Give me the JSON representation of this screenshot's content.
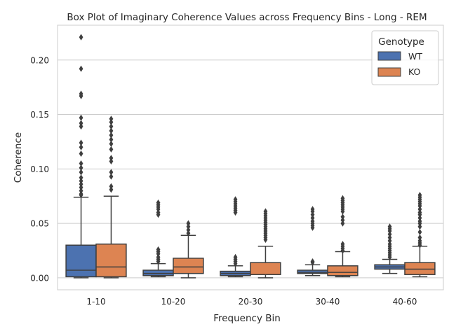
{
  "chart_data": {
    "type": "box",
    "title": "Box Plot of Imaginary Coherence Values across Frequency Bins - Long - REM",
    "xlabel": "Frequency Bin",
    "ylabel": "Coherence",
    "ylim": [
      -0.011,
      0.232
    ],
    "yticks": [
      0.0,
      0.05,
      0.1,
      0.15,
      0.2
    ],
    "ytick_labels": [
      "0.00",
      "0.05",
      "0.10",
      "0.15",
      "0.20"
    ],
    "grid": true,
    "legend": {
      "title": "Genotype",
      "placement": "top-right"
    },
    "categories": [
      "1-10",
      "10-20",
      "20-30",
      "30-40",
      "40-60"
    ],
    "series": [
      {
        "name": "WT",
        "color": "#4c72b0",
        "boxes": [
          {
            "whislo": 0.0,
            "q1": 0.001,
            "med": 0.007,
            "q3": 0.03,
            "whishi": 0.074,
            "fliers": [
              0.221,
              0.192,
              0.169,
              0.167,
              0.147,
              0.142,
              0.139,
              0.124,
              0.12,
              0.114,
              0.105,
              0.101,
              0.097,
              0.092,
              0.089,
              0.086,
              0.083,
              0.08,
              0.077,
              0.076
            ]
          },
          {
            "whislo": 0.001,
            "q1": 0.002,
            "med": 0.004,
            "q3": 0.007,
            "whishi": 0.013,
            "fliers": [
              0.069,
              0.067,
              0.065,
              0.063,
              0.06,
              0.058,
              0.026,
              0.024,
              0.022,
              0.019,
              0.017,
              0.015
            ]
          },
          {
            "whislo": 0.001,
            "q1": 0.002,
            "med": 0.004,
            "q3": 0.006,
            "whishi": 0.011,
            "fliers": [
              0.072,
              0.07,
              0.068,
              0.066,
              0.064,
              0.062,
              0.06,
              0.019,
              0.017,
              0.015,
              0.013
            ]
          },
          {
            "whislo": 0.002,
            "q1": 0.004,
            "med": 0.005,
            "q3": 0.007,
            "whishi": 0.012,
            "fliers": [
              0.063,
              0.061,
              0.058,
              0.055,
              0.052,
              0.05,
              0.048,
              0.046,
              0.015,
              0.014
            ]
          },
          {
            "whislo": 0.004,
            "q1": 0.008,
            "med": 0.01,
            "q3": 0.012,
            "whishi": 0.017,
            "fliers": [
              0.047,
              0.045,
              0.043,
              0.04,
              0.037,
              0.034,
              0.031,
              0.029,
              0.027,
              0.025,
              0.023,
              0.021,
              0.019
            ]
          }
        ]
      },
      {
        "name": "KO",
        "color": "#dd8452",
        "boxes": [
          {
            "whislo": 0.0,
            "q1": 0.001,
            "med": 0.01,
            "q3": 0.031,
            "whishi": 0.075,
            "fliers": [
              0.146,
              0.143,
              0.139,
              0.135,
              0.131,
              0.127,
              0.123,
              0.118,
              0.11,
              0.107,
              0.097,
              0.093,
              0.084,
              0.081
            ]
          },
          {
            "whislo": 0.0,
            "q1": 0.004,
            "med": 0.01,
            "q3": 0.018,
            "whishi": 0.039,
            "fliers": [
              0.05,
              0.047,
              0.044,
              0.041
            ]
          },
          {
            "whislo": 0.0,
            "q1": 0.003,
            "med": 0.003,
            "q3": 0.014,
            "whishi": 0.029,
            "fliers": [
              0.061,
              0.059,
              0.057,
              0.055,
              0.053,
              0.051,
              0.049,
              0.047,
              0.045,
              0.043,
              0.041,
              0.039,
              0.037,
              0.035
            ]
          },
          {
            "whislo": 0.001,
            "q1": 0.002,
            "med": 0.005,
            "q3": 0.011,
            "whishi": 0.024,
            "fliers": [
              0.073,
              0.071,
              0.069,
              0.067,
              0.065,
              0.063,
              0.061,
              0.056,
              0.053,
              0.05,
              0.031,
              0.029,
              0.027,
              0.025
            ]
          },
          {
            "whislo": 0.001,
            "q1": 0.003,
            "med": 0.008,
            "q3": 0.014,
            "whishi": 0.029,
            "fliers": [
              0.076,
              0.074,
              0.072,
              0.07,
              0.068,
              0.066,
              0.063,
              0.06,
              0.058,
              0.055,
              0.052,
              0.05,
              0.047,
              0.042,
              0.037,
              0.034,
              0.032,
              0.03
            ]
          }
        ]
      }
    ]
  }
}
